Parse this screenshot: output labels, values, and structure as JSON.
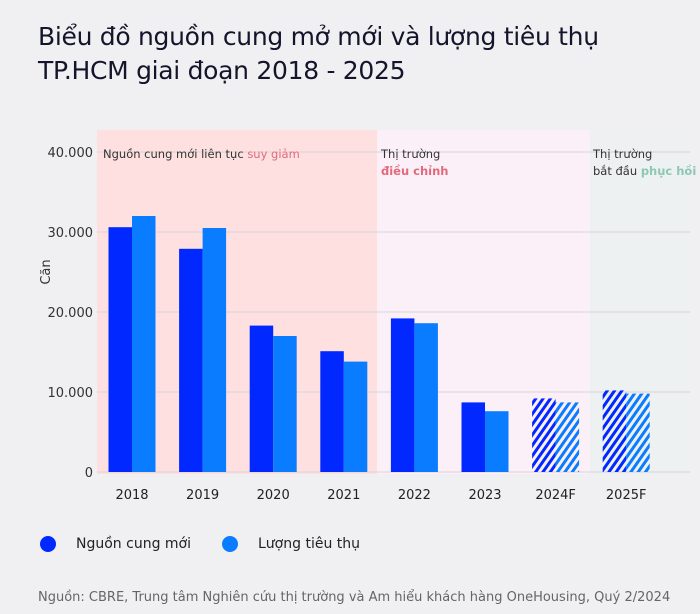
{
  "title_line1": "Biểu đồ nguồn cung mở mới và lượng tiêu thụ",
  "title_line2": "TP.HCM giai đoạn 2018 - 2025",
  "colors": {
    "supply": "#0028ff",
    "consumption": "#0a7cff",
    "phase1_bg": "#fde0df",
    "phase2_bg": "#fcf0f8",
    "phase3_bg": "#edf1f1",
    "accent_red": "#e2697c",
    "accent_green": "#8cc8b2"
  },
  "annotations": [
    {
      "text": "Nguồn cung mới liên tục ",
      "highlight": "suy giảm"
    },
    {
      "text": "Thị trường",
      "highlight": "điều chỉnh"
    },
    {
      "text": "Thị trường",
      "text2": "bắt đầu ",
      "highlight": "phục hồi"
    }
  ],
  "chart_data": {
    "type": "bar",
    "ylabel": "Căn",
    "ylim": [
      0,
      40000
    ],
    "yticks": [
      "0",
      "10.000",
      "20.000",
      "30.000",
      "40.000"
    ],
    "grid": true,
    "legend_placement": "bottom-left",
    "categories": [
      "2018",
      "2019",
      "2020",
      "2021",
      "2022",
      "2023",
      "2024F",
      "2025F"
    ],
    "forecast": [
      false,
      false,
      false,
      false,
      false,
      false,
      true,
      true
    ],
    "series": [
      {
        "name": "Nguồn cung mới",
        "values": [
          30600,
          27900,
          18300,
          15100,
          19200,
          8700,
          9200,
          10200
        ]
      },
      {
        "name": "Lượng tiêu thụ",
        "values": [
          32000,
          30500,
          17000,
          13800,
          18600,
          7600,
          8700,
          9800
        ]
      }
    ]
  },
  "source": "Nguồn: CBRE, Trung tâm Nghiên cứu thị trường và Am hiểu khách hàng OneHousing, Quý 2/2024"
}
